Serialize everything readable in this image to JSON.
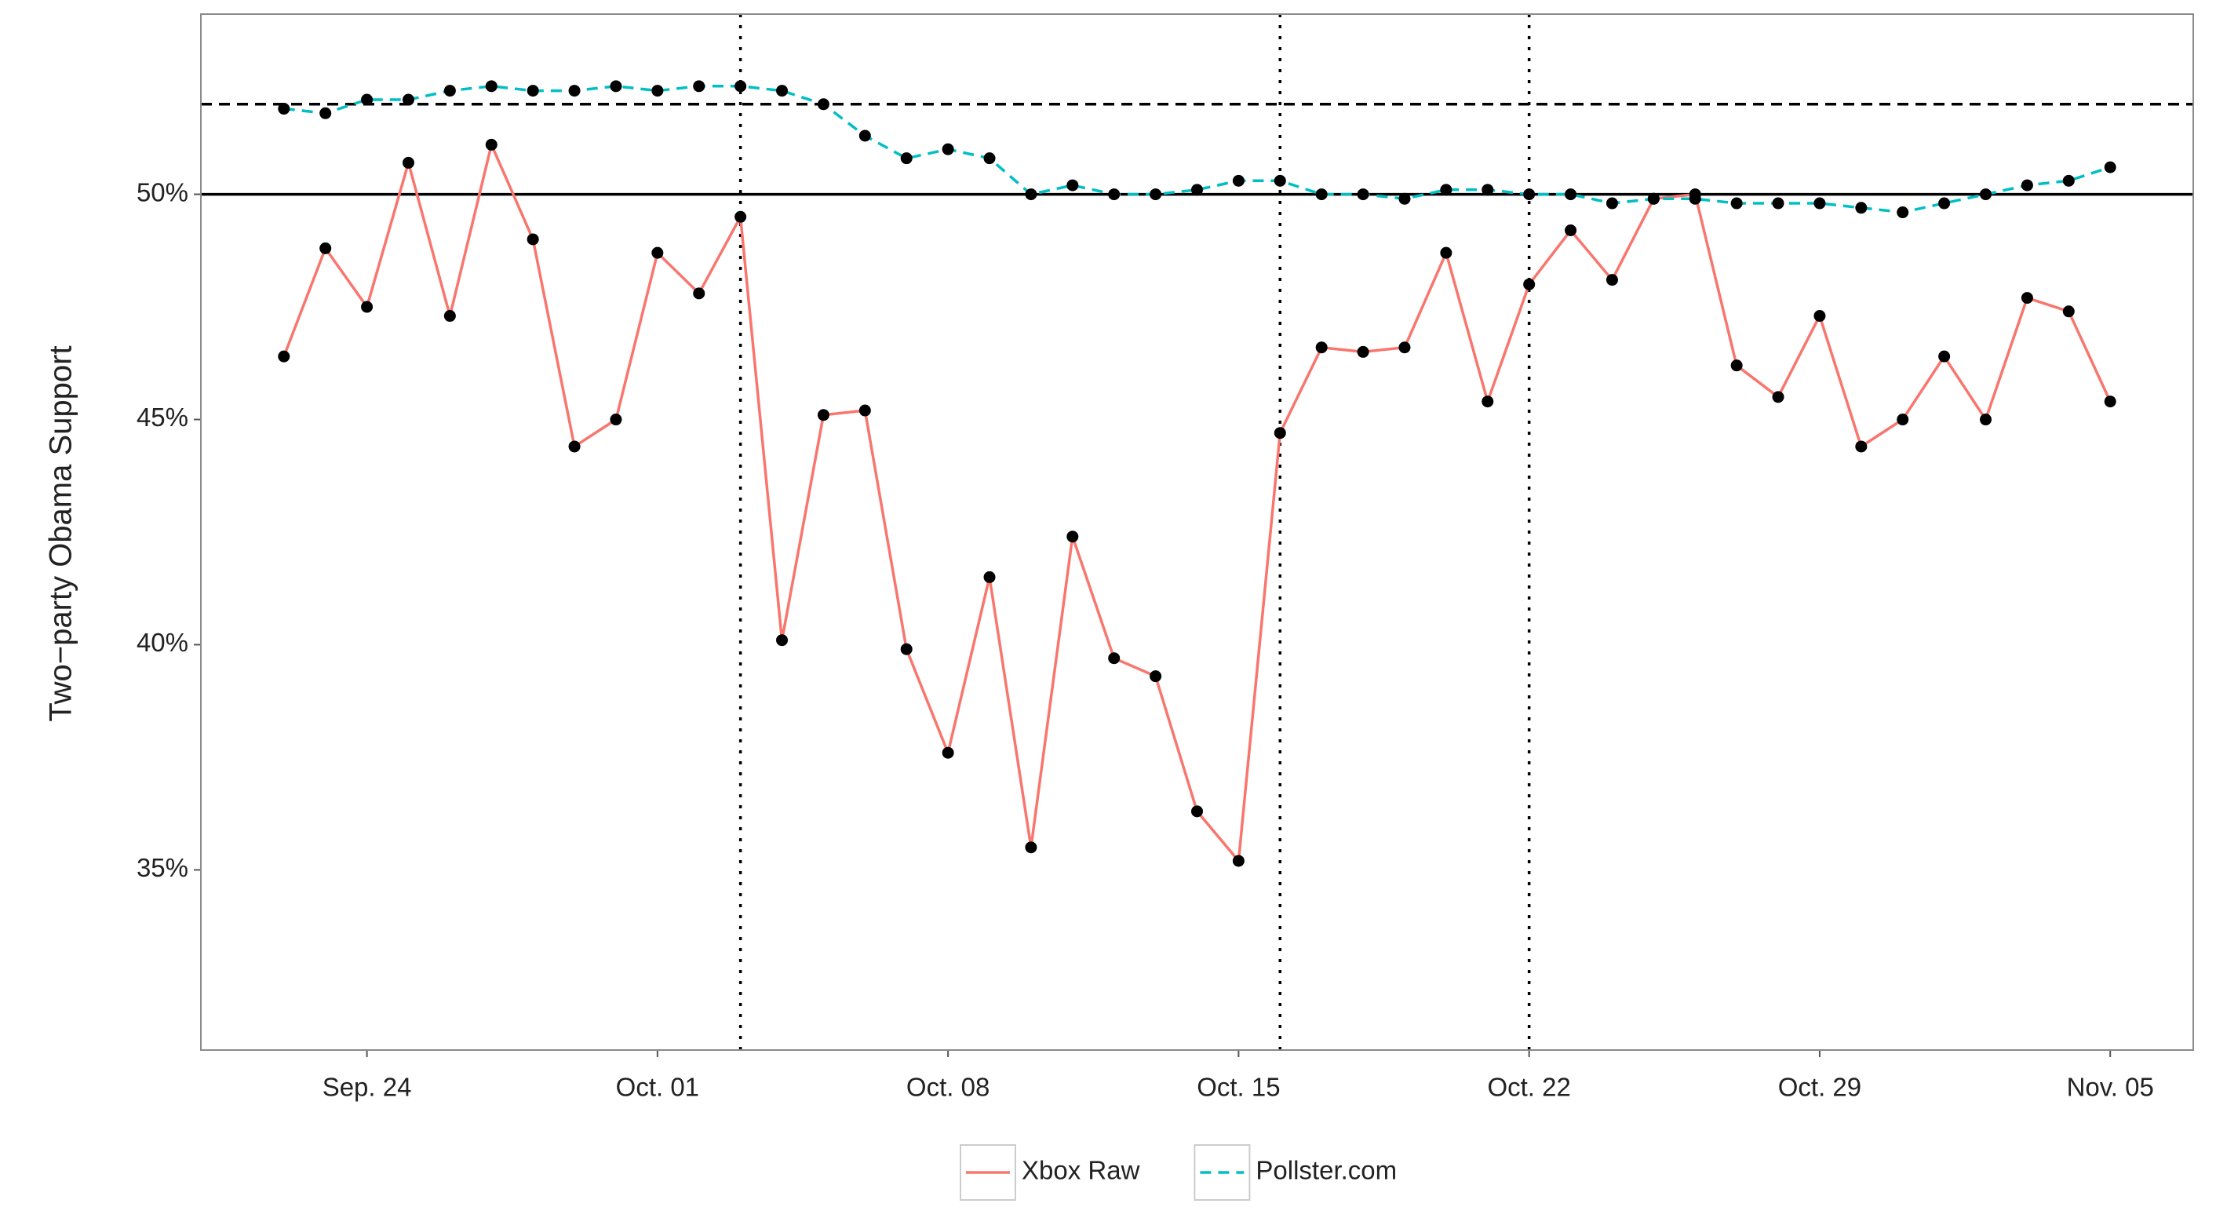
{
  "chart_data": {
    "type": "line",
    "ylabel": "Two−party Obama Support",
    "x": [
      "09-22",
      "09-23",
      "09-24",
      "09-25",
      "09-26",
      "09-27",
      "09-28",
      "09-29",
      "09-30",
      "10-01",
      "10-02",
      "10-03",
      "10-04",
      "10-05",
      "10-06",
      "10-07",
      "10-08",
      "10-09",
      "10-10",
      "10-11",
      "10-12",
      "10-13",
      "10-14",
      "10-15",
      "10-16",
      "10-17",
      "10-18",
      "10-19",
      "10-20",
      "10-21",
      "10-22",
      "10-23",
      "10-24",
      "10-25",
      "10-26",
      "10-27",
      "10-28",
      "10-29",
      "10-30",
      "10-31",
      "11-01",
      "11-02",
      "11-03",
      "11-04",
      "11-05"
    ],
    "series": [
      {
        "name": "Xbox Raw",
        "color": "#f8766d",
        "dash": "solid",
        "values": [
          46.4,
          48.8,
          47.5,
          50.7,
          47.3,
          51.1,
          49.0,
          44.4,
          45.0,
          48.7,
          47.8,
          49.5,
          40.1,
          45.1,
          45.2,
          39.9,
          37.6,
          41.5,
          35.5,
          42.4,
          39.7,
          39.3,
          36.3,
          35.2,
          44.7,
          46.6,
          46.5,
          46.6,
          48.7,
          45.4,
          48.0,
          49.2,
          48.1,
          49.9,
          50.0,
          46.2,
          45.5,
          47.3,
          44.4,
          45.0,
          46.4,
          45.0,
          47.7,
          47.4,
          45.4
        ]
      },
      {
        "name": "Pollster.com",
        "color": "#00bfc4",
        "dash": "dashed",
        "values": [
          51.9,
          51.8,
          52.1,
          52.1,
          52.3,
          52.4,
          52.3,
          52.3,
          52.4,
          52.3,
          52.4,
          52.4,
          52.3,
          52.0,
          51.3,
          50.8,
          51.0,
          50.8,
          50.0,
          50.2,
          50.0,
          50.0,
          50.1,
          50.3,
          50.3,
          50.0,
          50.0,
          49.9,
          50.1,
          50.1,
          50.0,
          50.0,
          49.8,
          49.9,
          49.9,
          49.8,
          49.8,
          49.8,
          49.7,
          49.6,
          49.8,
          50.0,
          50.2,
          50.3,
          50.6
        ]
      }
    ],
    "xlim": [
      "09-20",
      "11-07"
    ],
    "xticks": [
      {
        "value": "09-24",
        "label": "Sep. 24"
      },
      {
        "value": "10-01",
        "label": "Oct. 01"
      },
      {
        "value": "10-08",
        "label": "Oct. 08"
      },
      {
        "value": "10-15",
        "label": "Oct. 15"
      },
      {
        "value": "10-22",
        "label": "Oct. 22"
      },
      {
        "value": "10-29",
        "label": "Oct. 29"
      },
      {
        "value": "11-05",
        "label": "Nov. 05"
      }
    ],
    "ylim": [
      31.0,
      54.0
    ],
    "yticks": [
      {
        "value": 35,
        "label": "35%"
      },
      {
        "value": 40,
        "label": "40%"
      },
      {
        "value": 45,
        "label": "45%"
      },
      {
        "value": 50,
        "label": "50%"
      }
    ],
    "hlines": [
      {
        "value": 52,
        "style": "dashed"
      },
      {
        "value": 50,
        "style": "solid"
      }
    ],
    "vlines": [
      "10-03",
      "10-16",
      "10-22"
    ],
    "legend": "bottom",
    "markers": true
  }
}
